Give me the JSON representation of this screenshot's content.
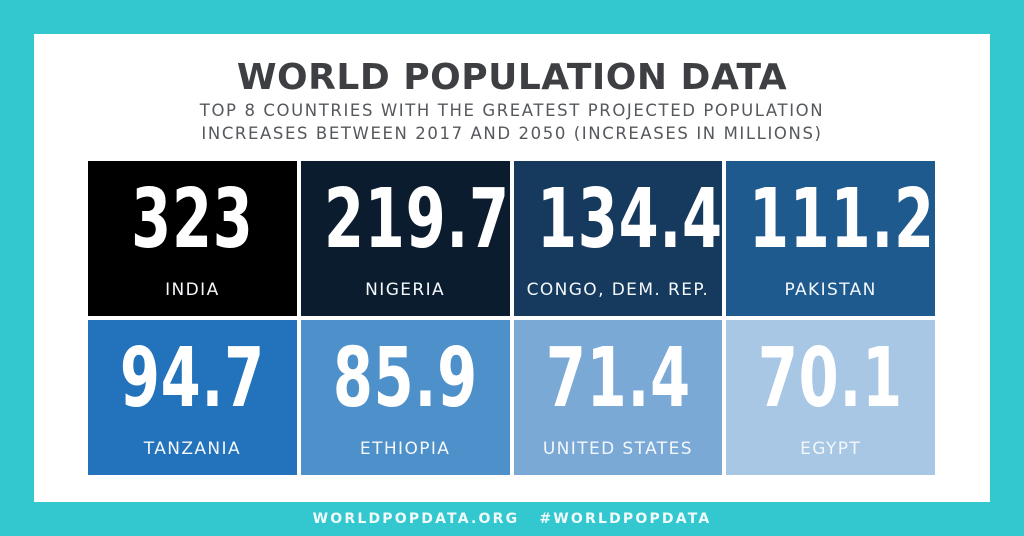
{
  "header": {
    "title": "WORLD POPULATION DATA",
    "subtitle_line1": "TOP 8 COUNTRIES WITH THE GREATEST PROJECTED POPULATION",
    "subtitle_line2": "INCREASES BETWEEN 2017 AND 2050 (INCREASES IN MILLIONS)"
  },
  "tiles": [
    {
      "value": "323",
      "country": "INDIA",
      "color": "#000000"
    },
    {
      "value": "219.7",
      "country": "NIGERIA",
      "color": "#0a1c2e"
    },
    {
      "value": "134.4",
      "country": "CONGO, DEM. REP.",
      "color": "#153a5e"
    },
    {
      "value": "111.2",
      "country": "PAKISTAN",
      "color": "#1e5a8e"
    },
    {
      "value": "94.7",
      "country": "TANZANIA",
      "color": "#2273bb"
    },
    {
      "value": "85.9",
      "country": "ETHIOPIA",
      "color": "#4e90ca"
    },
    {
      "value": "71.4",
      "country": "UNITED STATES",
      "color": "#7aa9d6"
    },
    {
      "value": "70.1",
      "country": "EGYPT",
      "color": "#a7c7e4"
    }
  ],
  "footer": {
    "website": "WORLDPOPDATA.ORG",
    "hashtag": "#WORLDPOPDATA"
  },
  "colors": {
    "frame": "#33c8cf",
    "panel": "#ffffff",
    "title": "#3d3f42"
  },
  "chart_data": {
    "type": "table",
    "title": "WORLD POPULATION DATA",
    "subtitle": "TOP 8 COUNTRIES WITH THE GREATEST PROJECTED POPULATION INCREASES BETWEEN 2017 AND 2050 (INCREASES IN MILLIONS)",
    "categories": [
      "India",
      "Nigeria",
      "Congo, Dem. Rep.",
      "Pakistan",
      "Tanzania",
      "Ethiopia",
      "United States",
      "Egypt"
    ],
    "values": [
      323,
      219.7,
      134.4,
      111.2,
      94.7,
      85.9,
      71.4,
      70.1
    ],
    "unit": "millions",
    "layout": "4x2 grid of colored tiles, darkest for largest value"
  }
}
